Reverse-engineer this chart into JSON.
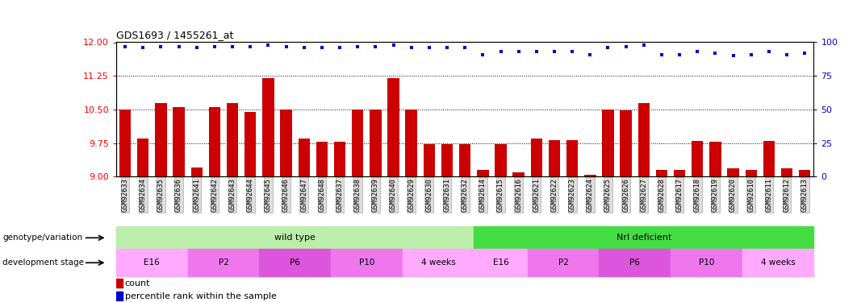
{
  "title": "GDS1693 / 1455261_at",
  "samples": [
    "GSM92633",
    "GSM92634",
    "GSM92635",
    "GSM92636",
    "GSM92641",
    "GSM92642",
    "GSM92643",
    "GSM92644",
    "GSM92645",
    "GSM92646",
    "GSM92647",
    "GSM92648",
    "GSM92637",
    "GSM92638",
    "GSM92639",
    "GSM92640",
    "GSM92629",
    "GSM92630",
    "GSM92631",
    "GSM92632",
    "GSM92614",
    "GSM92615",
    "GSM92616",
    "GSM92621",
    "GSM92622",
    "GSM92623",
    "GSM92624",
    "GSM92625",
    "GSM92626",
    "GSM92627",
    "GSM92628",
    "GSM92617",
    "GSM92618",
    "GSM92619",
    "GSM92620",
    "GSM92610",
    "GSM92611",
    "GSM92612",
    "GSM92613"
  ],
  "count_values": [
    10.5,
    9.85,
    10.65,
    10.55,
    9.2,
    10.55,
    10.65,
    10.45,
    11.2,
    10.5,
    9.85,
    9.78,
    9.78,
    10.5,
    10.5,
    11.2,
    10.5,
    9.72,
    9.72,
    9.72,
    9.15,
    9.72,
    9.1,
    9.85,
    9.82,
    9.82,
    9.05,
    10.5,
    10.48,
    10.65,
    9.15,
    9.15,
    9.8,
    9.78,
    9.18,
    9.15,
    9.8,
    9.18,
    9.15
  ],
  "percentile_values": [
    97,
    96,
    97,
    97,
    96,
    97,
    97,
    97,
    98,
    97,
    96,
    96,
    96,
    97,
    97,
    98,
    96,
    96,
    96,
    96,
    91,
    93,
    93,
    93,
    93,
    93,
    91,
    96,
    97,
    98,
    91,
    91,
    93,
    92,
    90,
    91,
    93,
    91,
    92
  ],
  "ylim_left": [
    9.0,
    12.0
  ],
  "ylim_right": [
    0,
    100
  ],
  "yticks_left": [
    9.0,
    9.75,
    10.5,
    11.25,
    12.0
  ],
  "yticks_right": [
    0,
    25,
    50,
    75,
    100
  ],
  "bar_color": "#cc0000",
  "dot_color": "#0000cc",
  "genotype_groups": [
    {
      "label": "wild type",
      "start": 0,
      "end": 19,
      "color": "#bbeeaa"
    },
    {
      "label": "Nrl deficient",
      "start": 20,
      "end": 38,
      "color": "#44dd44"
    }
  ],
  "dev_stages": [
    {
      "label": "E16",
      "start": 0,
      "end": 3,
      "color": "#ffaaff"
    },
    {
      "label": "P2",
      "start": 4,
      "end": 7,
      "color": "#ee77ee"
    },
    {
      "label": "P6",
      "start": 8,
      "end": 11,
      "color": "#dd55dd"
    },
    {
      "label": "P10",
      "start": 12,
      "end": 15,
      "color": "#ee77ee"
    },
    {
      "label": "4 weeks",
      "start": 16,
      "end": 19,
      "color": "#ffaaff"
    },
    {
      "label": "E16",
      "start": 20,
      "end": 22,
      "color": "#ffaaff"
    },
    {
      "label": "P2",
      "start": 23,
      "end": 26,
      "color": "#ee77ee"
    },
    {
      "label": "P6",
      "start": 27,
      "end": 30,
      "color": "#dd55dd"
    },
    {
      "label": "P10",
      "start": 31,
      "end": 34,
      "color": "#ee77ee"
    },
    {
      "label": "4 weeks",
      "start": 35,
      "end": 38,
      "color": "#ffaaff"
    }
  ],
  "row_label_genotype": "genotype/variation",
  "row_label_devstage": "development stage",
  "legend_count": "count",
  "legend_pct": "percentile rank within the sample"
}
